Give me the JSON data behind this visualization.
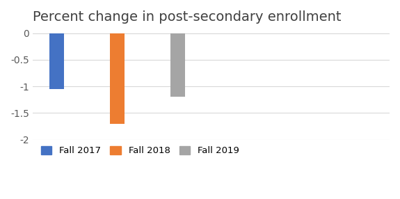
{
  "categories": [
    "Fall 2017",
    "Fall 2018",
    "Fall 2019"
  ],
  "values": [
    -1.05,
    -1.7,
    -1.2
  ],
  "bar_colors": [
    "#4472c4",
    "#ed7d31",
    "#a5a5a5"
  ],
  "title": "Percent change in post-secondary enrollment",
  "title_fontsize": 14,
  "ylim": [
    -2,
    0.05
  ],
  "yticks": [
    0,
    -0.5,
    -1,
    -1.5,
    -2
  ],
  "ytick_labels": [
    "0",
    "-0.5",
    "-1",
    "-1.5",
    "-2"
  ],
  "background_color": "#ffffff",
  "grid_color": "#d9d9d9",
  "bar_width": 0.25,
  "xlim": [
    -0.4,
    5.5
  ],
  "legend_labels": [
    "Fall 2017",
    "Fall 2018",
    "Fall 2019"
  ]
}
